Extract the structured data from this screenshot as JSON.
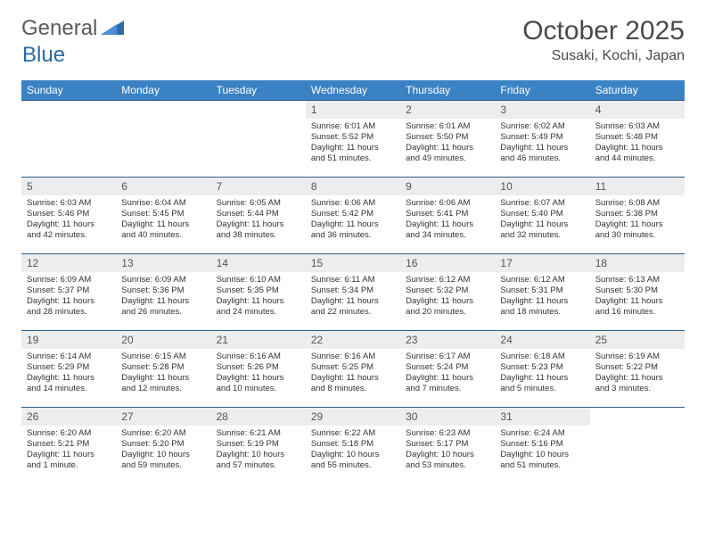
{
  "header": {
    "logo_text_1": "General",
    "logo_text_2": "Blue",
    "month_title": "October 2025",
    "location": "Susaki, Kochi, Japan"
  },
  "colors": {
    "header_bg": "#3b82c4",
    "header_text": "#ffffff",
    "daynum_bg": "#ebedef",
    "row_border": "#2f5d8a",
    "body_text": "#333333",
    "logo_grey": "#5a5a5a",
    "logo_blue": "#2968a8"
  },
  "weekdays": [
    "Sunday",
    "Monday",
    "Tuesday",
    "Wednesday",
    "Thursday",
    "Friday",
    "Saturday"
  ],
  "weeks": [
    [
      null,
      null,
      null,
      {
        "n": "1",
        "sr": "Sunrise: 6:01 AM",
        "ss": "Sunset: 5:52 PM",
        "dl": "Daylight: 11 hours and 51 minutes."
      },
      {
        "n": "2",
        "sr": "Sunrise: 6:01 AM",
        "ss": "Sunset: 5:50 PM",
        "dl": "Daylight: 11 hours and 49 minutes."
      },
      {
        "n": "3",
        "sr": "Sunrise: 6:02 AM",
        "ss": "Sunset: 5:49 PM",
        "dl": "Daylight: 11 hours and 46 minutes."
      },
      {
        "n": "4",
        "sr": "Sunrise: 6:03 AM",
        "ss": "Sunset: 5:48 PM",
        "dl": "Daylight: 11 hours and 44 minutes."
      }
    ],
    [
      {
        "n": "5",
        "sr": "Sunrise: 6:03 AM",
        "ss": "Sunset: 5:46 PM",
        "dl": "Daylight: 11 hours and 42 minutes."
      },
      {
        "n": "6",
        "sr": "Sunrise: 6:04 AM",
        "ss": "Sunset: 5:45 PM",
        "dl": "Daylight: 11 hours and 40 minutes."
      },
      {
        "n": "7",
        "sr": "Sunrise: 6:05 AM",
        "ss": "Sunset: 5:44 PM",
        "dl": "Daylight: 11 hours and 38 minutes."
      },
      {
        "n": "8",
        "sr": "Sunrise: 6:06 AM",
        "ss": "Sunset: 5:42 PM",
        "dl": "Daylight: 11 hours and 36 minutes."
      },
      {
        "n": "9",
        "sr": "Sunrise: 6:06 AM",
        "ss": "Sunset: 5:41 PM",
        "dl": "Daylight: 11 hours and 34 minutes."
      },
      {
        "n": "10",
        "sr": "Sunrise: 6:07 AM",
        "ss": "Sunset: 5:40 PM",
        "dl": "Daylight: 11 hours and 32 minutes."
      },
      {
        "n": "11",
        "sr": "Sunrise: 6:08 AM",
        "ss": "Sunset: 5:38 PM",
        "dl": "Daylight: 11 hours and 30 minutes."
      }
    ],
    [
      {
        "n": "12",
        "sr": "Sunrise: 6:09 AM",
        "ss": "Sunset: 5:37 PM",
        "dl": "Daylight: 11 hours and 28 minutes."
      },
      {
        "n": "13",
        "sr": "Sunrise: 6:09 AM",
        "ss": "Sunset: 5:36 PM",
        "dl": "Daylight: 11 hours and 26 minutes."
      },
      {
        "n": "14",
        "sr": "Sunrise: 6:10 AM",
        "ss": "Sunset: 5:35 PM",
        "dl": "Daylight: 11 hours and 24 minutes."
      },
      {
        "n": "15",
        "sr": "Sunrise: 6:11 AM",
        "ss": "Sunset: 5:34 PM",
        "dl": "Daylight: 11 hours and 22 minutes."
      },
      {
        "n": "16",
        "sr": "Sunrise: 6:12 AM",
        "ss": "Sunset: 5:32 PM",
        "dl": "Daylight: 11 hours and 20 minutes."
      },
      {
        "n": "17",
        "sr": "Sunrise: 6:12 AM",
        "ss": "Sunset: 5:31 PM",
        "dl": "Daylight: 11 hours and 18 minutes."
      },
      {
        "n": "18",
        "sr": "Sunrise: 6:13 AM",
        "ss": "Sunset: 5:30 PM",
        "dl": "Daylight: 11 hours and 16 minutes."
      }
    ],
    [
      {
        "n": "19",
        "sr": "Sunrise: 6:14 AM",
        "ss": "Sunset: 5:29 PM",
        "dl": "Daylight: 11 hours and 14 minutes."
      },
      {
        "n": "20",
        "sr": "Sunrise: 6:15 AM",
        "ss": "Sunset: 5:28 PM",
        "dl": "Daylight: 11 hours and 12 minutes."
      },
      {
        "n": "21",
        "sr": "Sunrise: 6:16 AM",
        "ss": "Sunset: 5:26 PM",
        "dl": "Daylight: 11 hours and 10 minutes."
      },
      {
        "n": "22",
        "sr": "Sunrise: 6:16 AM",
        "ss": "Sunset: 5:25 PM",
        "dl": "Daylight: 11 hours and 8 minutes."
      },
      {
        "n": "23",
        "sr": "Sunrise: 6:17 AM",
        "ss": "Sunset: 5:24 PM",
        "dl": "Daylight: 11 hours and 7 minutes."
      },
      {
        "n": "24",
        "sr": "Sunrise: 6:18 AM",
        "ss": "Sunset: 5:23 PM",
        "dl": "Daylight: 11 hours and 5 minutes."
      },
      {
        "n": "25",
        "sr": "Sunrise: 6:19 AM",
        "ss": "Sunset: 5:22 PM",
        "dl": "Daylight: 11 hours and 3 minutes."
      }
    ],
    [
      {
        "n": "26",
        "sr": "Sunrise: 6:20 AM",
        "ss": "Sunset: 5:21 PM",
        "dl": "Daylight: 11 hours and 1 minute."
      },
      {
        "n": "27",
        "sr": "Sunrise: 6:20 AM",
        "ss": "Sunset: 5:20 PM",
        "dl": "Daylight: 10 hours and 59 minutes."
      },
      {
        "n": "28",
        "sr": "Sunrise: 6:21 AM",
        "ss": "Sunset: 5:19 PM",
        "dl": "Daylight: 10 hours and 57 minutes."
      },
      {
        "n": "29",
        "sr": "Sunrise: 6:22 AM",
        "ss": "Sunset: 5:18 PM",
        "dl": "Daylight: 10 hours and 55 minutes."
      },
      {
        "n": "30",
        "sr": "Sunrise: 6:23 AM",
        "ss": "Sunset: 5:17 PM",
        "dl": "Daylight: 10 hours and 53 minutes."
      },
      {
        "n": "31",
        "sr": "Sunrise: 6:24 AM",
        "ss": "Sunset: 5:16 PM",
        "dl": "Daylight: 10 hours and 51 minutes."
      },
      null
    ]
  ]
}
